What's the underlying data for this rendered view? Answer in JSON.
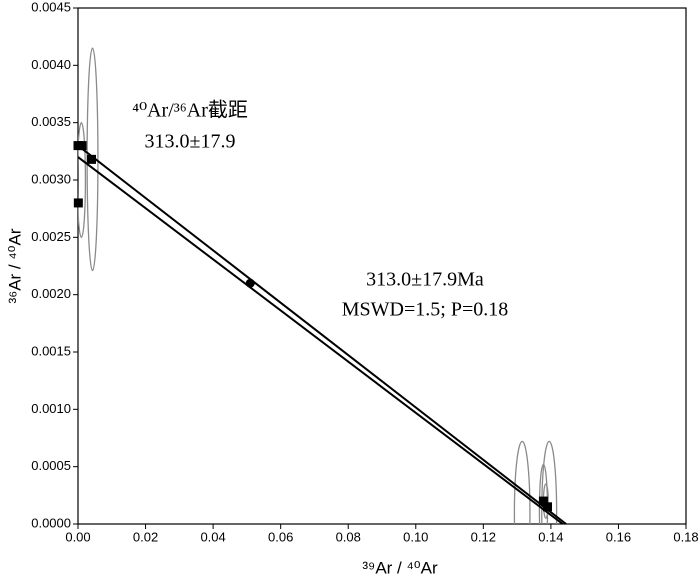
{
  "chart_data": {
    "type": "scatter",
    "xlabel": "³⁹Ar / ⁴⁰Ar",
    "ylabel": "³⁶Ar / ⁴⁰Ar",
    "xlim": [
      0,
      0.18
    ],
    "ylim": [
      0,
      0.0045
    ],
    "xticks": [
      {
        "value": 0,
        "label": "0.00"
      },
      {
        "value": 0.02,
        "label": "0.02"
      },
      {
        "value": 0.04,
        "label": "0.04"
      },
      {
        "value": 0.06,
        "label": "0.06"
      },
      {
        "value": 0.08,
        "label": "0.08"
      },
      {
        "value": 0.1,
        "label": "0.10"
      },
      {
        "value": 0.12,
        "label": "0.12"
      },
      {
        "value": 0.14,
        "label": "0.14"
      },
      {
        "value": 0.16,
        "label": "0.16"
      },
      {
        "value": 0.18,
        "label": "0.18"
      }
    ],
    "yticks": [
      {
        "value": 0,
        "label": "0.0000"
      },
      {
        "value": 0.0005,
        "label": "0.0005"
      },
      {
        "value": 0.001,
        "label": "0.0010"
      },
      {
        "value": 0.0015,
        "label": "0.0015"
      },
      {
        "value": 0.002,
        "label": "0.0020"
      },
      {
        "value": 0.0025,
        "label": "0.0025"
      },
      {
        "value": 0.003,
        "label": "0.0030"
      },
      {
        "value": 0.0035,
        "label": "0.0035"
      },
      {
        "value": 0.004,
        "label": "0.0040"
      },
      {
        "value": 0.0045,
        "label": "0.0045"
      }
    ],
    "series": [
      {
        "marker": "square",
        "color": "#000000",
        "x": [
          0.0,
          0.0012,
          0.004,
          0.0001,
          0.1378,
          0.139
        ],
        "y": [
          0.0033,
          0.0033,
          0.00318,
          0.0028,
          0.0002,
          0.00015
        ]
      },
      {
        "marker": "circle",
        "color": "#000000",
        "x": [
          0.051
        ],
        "y": [
          0.0021
        ]
      }
    ],
    "lines": [
      {
        "color": "#000000",
        "x": [
          0,
          0.1445
        ],
        "y": [
          0.0033,
          0
        ]
      },
      {
        "color": "#000000",
        "x": [
          0,
          0.1435
        ],
        "y": [
          0.0032,
          0
        ]
      }
    ],
    "ellipse_color": "#8a8a8a",
    "ellipses": [
      {
        "cx": 0.0043,
        "cy": 0.00318,
        "rx": 0.0016,
        "ry": 0.00097
      },
      {
        "cx": 0.001,
        "cy": 0.003,
        "rx": 0.0012,
        "ry": 0.0005
      },
      {
        "cx": 0.1315,
        "cy": 0.0001,
        "rx": 0.0023,
        "ry": 0.00062
      },
      {
        "cx": 0.1395,
        "cy": 0.0001,
        "rx": 0.0022,
        "ry": 0.00062
      },
      {
        "cx": 0.1378,
        "cy": 0.00012,
        "rx": 0.0012,
        "ry": 0.0004
      },
      {
        "cx": 0.1385,
        "cy": 0.0002,
        "rx": 0.0007,
        "ry": 0.00015
      }
    ],
    "annotations": [
      "⁴⁰Ar/³⁶Ar截距",
      "313.0±17.9",
      "313.0±17.9Ma",
      "MSWD=1.5; P=0.18"
    ]
  }
}
